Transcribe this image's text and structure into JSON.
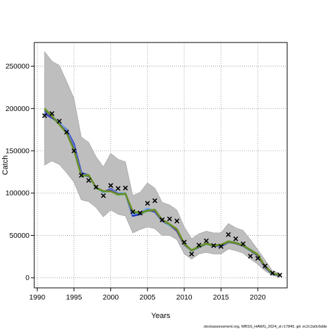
{
  "chart_data": {
    "type": "line",
    "xlabel": "Years",
    "ylabel": "Catch",
    "xlim": [
      1989.6,
      2024.0
    ],
    "ylim": [
      -12000,
      278000
    ],
    "xticks": [
      1990,
      1995,
      2000,
      2005,
      2010,
      2015,
      2020
    ],
    "yticks": [
      0,
      50000,
      100000,
      150000,
      200000,
      250000
    ],
    "grid": true,
    "observed": {
      "marker": "x",
      "color": "#000000",
      "x": [
        1991,
        1992,
        1993,
        1994,
        1995,
        1996,
        1997,
        1998,
        1999,
        2000,
        2001,
        2002,
        2003,
        2004,
        2005,
        2006,
        2007,
        2008,
        2009,
        2010,
        2011,
        2012,
        2013,
        2014,
        2015,
        2016,
        2017,
        2018,
        2019,
        2020,
        2021,
        2022,
        2023
      ],
      "y": [
        191500,
        194000,
        185000,
        172000,
        150000,
        121000,
        115000,
        107000,
        97000,
        109000,
        105500,
        106000,
        78000,
        76500,
        88000,
        91000,
        68500,
        69500,
        67000,
        42000,
        28000,
        38500,
        43500,
        38000,
        37000,
        51000,
        46000,
        40000,
        25500,
        23000,
        14000,
        5500,
        3000
      ]
    },
    "band": {
      "color": "#bebebe",
      "upper": [
        267000,
        256000,
        251000,
        232000,
        212000,
        166000,
        160000,
        143000,
        131000,
        147000,
        140000,
        137000,
        97000,
        101000,
        112000,
        106000,
        89000,
        86000,
        80000,
        60000,
        46000,
        52000,
        55000,
        53000,
        53000,
        64000,
        59000,
        56000,
        45000,
        33000,
        21000,
        8000,
        5500
      ],
      "lower": [
        133000,
        138000,
        134000,
        124000,
        113000,
        92000,
        90000,
        83000,
        72000,
        80000,
        75000,
        73000,
        53000,
        57000,
        60000,
        58000,
        50000,
        50000,
        45000,
        28000,
        22000,
        28000,
        30000,
        28000,
        28000,
        34000,
        32000,
        29000,
        22000,
        16000,
        8000,
        2500,
        1000
      ]
    },
    "series": [
      {
        "color": "#2030c0",
        "y": [
          194000,
          189000,
          183000,
          175000,
          158000,
          124000,
          121000,
          107000,
          101000,
          105000,
          100000,
          100000,
          73000,
          75000,
          80000,
          78000,
          67000,
          62000,
          56000,
          40000,
          32000,
          36000,
          40000,
          38000,
          37000,
          42000,
          41000,
          38000,
          33000,
          26000,
          12000,
          4500,
          2500
        ]
      },
      {
        "color": "#6fa8e8",
        "y": [
          196000,
          190000,
          184000,
          174000,
          155000,
          122000,
          121000,
          107000,
          101000,
          104000,
          100000,
          100000,
          75000,
          77000,
          82000,
          79000,
          67000,
          62000,
          56000,
          40000,
          32000,
          37000,
          40000,
          38000,
          37500,
          43000,
          41500,
          38500,
          33000,
          26500,
          13000,
          5000,
          3000
        ]
      },
      {
        "color": "#6a3d9a",
        "y": [
          197000,
          190000,
          182000,
          172000,
          153000,
          121000,
          120000,
          107000,
          102000,
          103000,
          99000,
          99000,
          77000,
          77000,
          79000,
          79000,
          67000,
          63000,
          55000,
          39000,
          32000,
          37000,
          40000,
          37500,
          38000,
          42000,
          40500,
          37500,
          32000,
          26000,
          12000,
          5000,
          3000
        ]
      },
      {
        "color": "#3cb043",
        "y": [
          199000,
          191000,
          181000,
          171000,
          151000,
          120000,
          121000,
          106000,
          102000,
          102000,
          98000,
          99000,
          78000,
          76000,
          79000,
          80000,
          68000,
          63000,
          57000,
          40000,
          32000,
          36500,
          40000,
          38000,
          38500,
          42500,
          41000,
          38000,
          32500,
          27000,
          13000,
          5000,
          3000
        ]
      },
      {
        "color": "#6b8e23",
        "y": [
          200000,
          191500,
          181000,
          171000,
          151000,
          120500,
          121500,
          106500,
          102500,
          102000,
          98500,
          99500,
          78500,
          76500,
          79500,
          80500,
          68500,
          63500,
          57500,
          40500,
          32500,
          37000,
          40500,
          38500,
          39000,
          43000,
          41500,
          38500,
          33000,
          27500,
          13500,
          5500,
          3000
        ]
      }
    ]
  },
  "caption": "stockassessment.org, WBSS_HAWG_2024_st r17845, git: ec2c2a0c6dde"
}
